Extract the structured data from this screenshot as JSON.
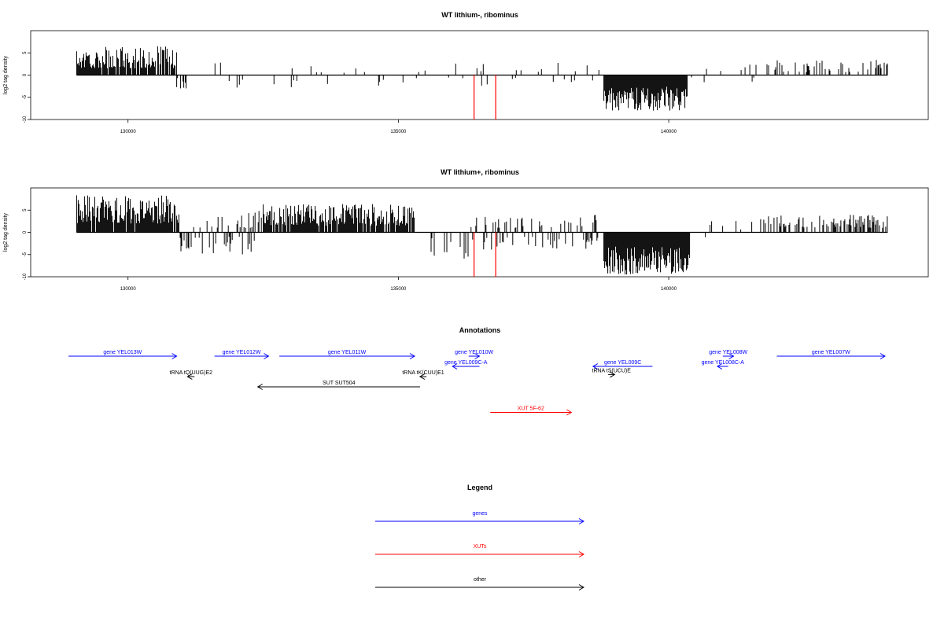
{
  "colors": {
    "gene": "#0000ff",
    "xut": "#ff0000",
    "other": "#000000",
    "highlight": "#ff0000",
    "axis": "#000000"
  },
  "chart_data": [
    {
      "type": "bar",
      "title": "WT lithium-, ribominus",
      "ylabel": "log2 tag density",
      "xlim": [
        128200,
        144800
      ],
      "ylim": [
        -10,
        10
      ],
      "xticks": [
        130000,
        135000,
        140000
      ],
      "xtick_labels": [
        "130000",
        "135000",
        "140000"
      ],
      "yticks": [
        5,
        0,
        -5,
        -10
      ],
      "ytick_labels": [
        "5",
        "0",
        "-5",
        "-10"
      ],
      "grid": false,
      "highlight_x": [
        136400,
        136800
      ],
      "highlight_depth": -10,
      "segments": [
        {
          "x0": 129050,
          "x1": 130900,
          "min": 1.5,
          "max": 6.5,
          "sign": 1,
          "density": 0.9
        },
        {
          "x0": 130900,
          "x1": 131100,
          "min": -3,
          "max": -0.5,
          "sign": -1,
          "density": 0.4
        },
        {
          "x0": 131100,
          "x1": 138800,
          "min": 0.5,
          "max": 3,
          "sign": 0,
          "density": 0.09
        },
        {
          "x0": 138800,
          "x1": 140350,
          "min": -8,
          "max": -2.5,
          "sign": -1,
          "density": 1.0
        },
        {
          "x0": 140350,
          "x1": 141600,
          "min": 0.5,
          "max": 2.5,
          "sign": 0,
          "density": 0.08
        },
        {
          "x0": 141600,
          "x1": 144050,
          "min": 0.5,
          "max": 3.5,
          "sign": 1,
          "density": 0.25
        }
      ]
    },
    {
      "type": "bar",
      "title": "WT lithium+, ribominus",
      "ylabel": "log2 tag density",
      "xlim": [
        128200,
        144800
      ],
      "ylim": [
        -10,
        10
      ],
      "xticks": [
        130000,
        135000,
        140000
      ],
      "xtick_labels": [
        "130000",
        "135000",
        "140000"
      ],
      "yticks": [
        5,
        0,
        -5,
        -10
      ],
      "ytick_labels": [
        "5",
        "0",
        "-5",
        "-10"
      ],
      "grid": false,
      "highlight_x": [
        136400,
        136800
      ],
      "highlight_depth": -10,
      "segments": [
        {
          "x0": 129050,
          "x1": 130950,
          "min": 2,
          "max": 8.5,
          "sign": 1,
          "density": 0.95
        },
        {
          "x0": 130950,
          "x1": 131200,
          "min": -4.5,
          "max": -1,
          "sign": -1,
          "density": 0.5
        },
        {
          "x0": 131200,
          "x1": 132500,
          "min": 1,
          "max": 5,
          "sign": 0,
          "density": 0.45
        },
        {
          "x0": 132500,
          "x1": 135300,
          "min": 1.5,
          "max": 6.5,
          "sign": 1,
          "density": 0.85
        },
        {
          "x0": 135300,
          "x1": 136300,
          "min": -6,
          "max": -1,
          "sign": -1,
          "density": 0.15
        },
        {
          "x0": 136300,
          "x1": 138800,
          "min": 1,
          "max": 4,
          "sign": 0,
          "density": 0.35
        },
        {
          "x0": 138800,
          "x1": 140400,
          "min": -9.5,
          "max": -3,
          "sign": -1,
          "density": 1.0
        },
        {
          "x0": 140400,
          "x1": 141700,
          "min": 0.5,
          "max": 3,
          "sign": 0,
          "density": 0.1
        },
        {
          "x0": 141700,
          "x1": 144050,
          "min": 1,
          "max": 4,
          "sign": 1,
          "density": 0.5
        }
      ]
    }
  ],
  "annotations": {
    "title": "Annotations",
    "items": [
      {
        "label": "gene YEL013W",
        "start": 128900,
        "end": 130900,
        "strand": "+",
        "row": 0,
        "category": "gene"
      },
      {
        "label": "gene YEL012W",
        "start": 131600,
        "end": 132600,
        "strand": "+",
        "row": 0,
        "category": "gene"
      },
      {
        "label": "gene YEL011W",
        "start": 132800,
        "end": 135300,
        "strand": "+",
        "row": 0,
        "category": "gene"
      },
      {
        "label": "gene YEL010W",
        "start": 136300,
        "end": 136500,
        "strand": "+",
        "row": 0,
        "category": "gene"
      },
      {
        "label": "gene YEL009C-A",
        "start": 136000,
        "end": 136500,
        "strand": "-",
        "row": 1,
        "category": "gene"
      },
      {
        "label": "gene YEL009C",
        "start": 138600,
        "end": 139700,
        "strand": "-",
        "row": 1,
        "category": "gene"
      },
      {
        "label": "gene YEL008W",
        "start": 141000,
        "end": 141200,
        "strand": "+",
        "row": 0,
        "category": "gene"
      },
      {
        "label": "gene YEL008C-A",
        "start": 140900,
        "end": 141100,
        "strand": "-",
        "row": 1,
        "category": "gene"
      },
      {
        "label": "gene YEL007W",
        "start": 142000,
        "end": 144000,
        "strand": "+",
        "row": 0,
        "category": "gene"
      },
      {
        "label": "tRNA tQ(UUG)E2",
        "start": 131100,
        "end": 131230,
        "strand": "-",
        "row": 2,
        "category": "other"
      },
      {
        "label": "tRNA tK(CUU)E1",
        "start": 135400,
        "end": 135520,
        "strand": "-",
        "row": 2,
        "category": "other"
      },
      {
        "label": "tRNA tS(UCU)E",
        "start": 138880,
        "end": 139000,
        "strand": "+",
        "row": 1.8,
        "category": "other"
      },
      {
        "label": "SUT SUT504",
        "start": 132400,
        "end": 135400,
        "strand": "-",
        "row": 3,
        "category": "other"
      },
      {
        "label": "XUT 5F-62",
        "start": 136700,
        "end": 138200,
        "strand": "+",
        "row": 5.5,
        "category": "xut"
      }
    ]
  },
  "legend": {
    "title": "Legend",
    "items": [
      {
        "label": "genes",
        "category": "gene"
      },
      {
        "label": "XUTs",
        "category": "xut"
      },
      {
        "label": "other",
        "category": "other"
      }
    ]
  }
}
